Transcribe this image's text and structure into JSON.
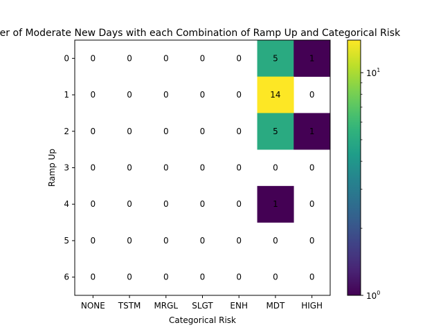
{
  "chart_data": {
    "type": "heatmap",
    "title": "Number of Moderate New Days with each Combination of Ramp Up and Categorical Risk",
    "xlabel": "Categorical Risk",
    "ylabel": "Ramp Up",
    "x_categories": [
      "NONE",
      "TSTM",
      "MRGL",
      "SLGT",
      "ENH",
      "MDT",
      "HIGH"
    ],
    "y_categories": [
      "0",
      "1",
      "2",
      "3",
      "4",
      "5",
      "6"
    ],
    "values": [
      [
        0,
        0,
        0,
        0,
        0,
        5,
        1
      ],
      [
        0,
        0,
        0,
        0,
        0,
        14,
        0
      ],
      [
        0,
        0,
        0,
        0,
        0,
        5,
        1
      ],
      [
        0,
        0,
        0,
        0,
        0,
        0,
        0
      ],
      [
        0,
        0,
        0,
        0,
        0,
        1,
        0
      ],
      [
        0,
        0,
        0,
        0,
        0,
        0,
        0
      ],
      [
        0,
        0,
        0,
        0,
        0,
        0,
        0
      ]
    ],
    "color_scale": "log",
    "colormap": "viridis",
    "colorbar": {
      "min": 1,
      "max": 14,
      "major_ticks": [
        {
          "value": 1,
          "label": "10",
          "exp": "0"
        },
        {
          "value": 10,
          "label": "10",
          "exp": "1"
        }
      ],
      "minor_ticks": [
        2,
        3,
        4,
        5,
        6,
        7,
        8,
        9
      ]
    },
    "zero_cells_blank": true,
    "grid": false
  }
}
